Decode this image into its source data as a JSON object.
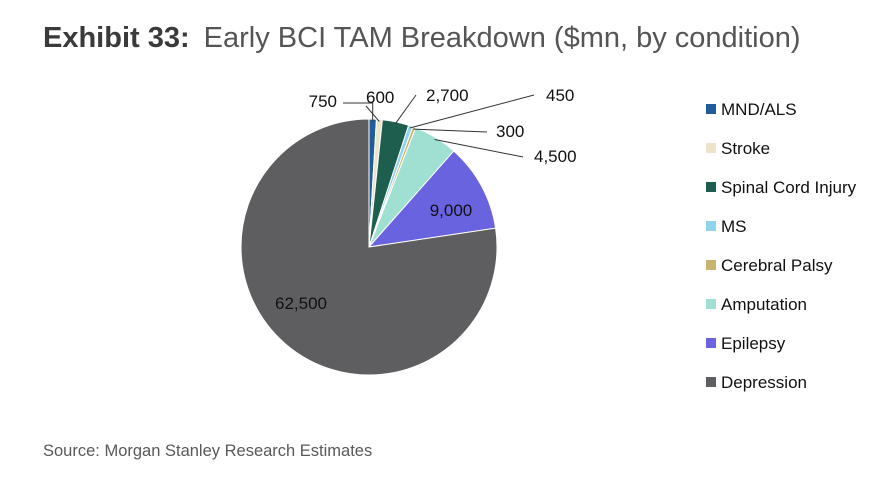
{
  "header": {
    "exhibit": "Exhibit 33:",
    "title": "Early BCI TAM Breakdown ($mn, by condition)"
  },
  "footer": {
    "source": "Source: Morgan Stanley Research Estimates"
  },
  "chart_data": {
    "type": "pie",
    "title": "Early BCI TAM Breakdown ($mn, by condition)",
    "unit": "$mn",
    "legend_position": "right",
    "slices": [
      {
        "name": "MND/ALS",
        "value": 750,
        "label": "750",
        "color": "#1f5c99"
      },
      {
        "name": "Stroke",
        "value": 600,
        "label": "600",
        "color": "#ece3c8"
      },
      {
        "name": "Spinal Cord Injury",
        "value": 2700,
        "label": "2,700",
        "color": "#1e5e4e"
      },
      {
        "name": "MS",
        "value": 450,
        "label": "450",
        "color": "#8fd3ec"
      },
      {
        "name": "Cerebral Palsy",
        "value": 300,
        "label": "300",
        "color": "#c8b46e"
      },
      {
        "name": "Amputation",
        "value": 4500,
        "label": "4,500",
        "color": "#9fe0d2"
      },
      {
        "name": "Epilepsy",
        "value": 9000,
        "label": "9,000",
        "color": "#6a63e0"
      },
      {
        "name": "Depression",
        "value": 62500,
        "label": "62,500",
        "color": "#5e5e60"
      }
    ]
  }
}
